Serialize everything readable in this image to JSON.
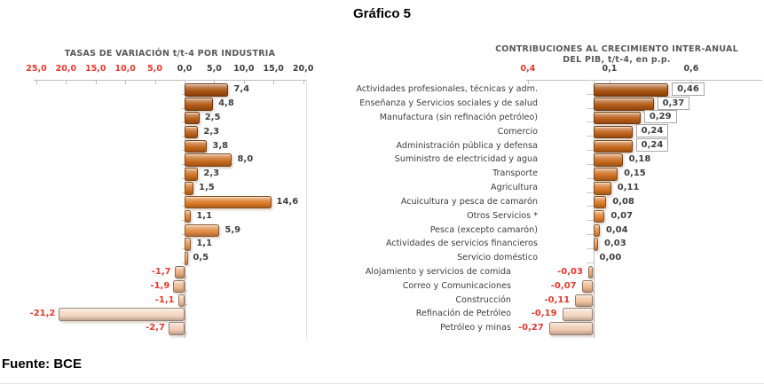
{
  "page": {
    "title": "Gráfico 5",
    "source": "Fuente: BCE"
  },
  "left_panel": {
    "header": "TASAS DE VARIACIÓN t/t-4 POR INDUSTRIA"
  },
  "right_panel": {
    "header_line1": "CONTRIBUCIONES AL CRECIMIENTO INTER-ANUAL",
    "header_line2": "DEL PIB, t/t-4, en p.p."
  },
  "chart_data": {
    "type": "bar",
    "orientation": "horizontal",
    "title": "Gráfico 5",
    "categories": [
      "Actividades profesionales, técnicas y adm.",
      "Enseñanza y Servicios sociales y de salud",
      "Manufactura (sin refinación petróleo)",
      "Comercio",
      "Administración pública y defensa",
      "Suministro de electricidad y agua",
      "Transporte",
      "Agricultura",
      "Acuicultura y pesca de camarón",
      "Otros Servicios *",
      "Pesca (excepto camarón)",
      "Actividades de servicios financieros",
      "Servicio doméstico",
      "Alojamiento y servicios de comida",
      "Correo y Comunicaciones",
      "Construcción",
      "Refinación de Petróleo",
      "Petróleo y minas"
    ],
    "series": [
      {
        "name": "TASAS DE VARIACIÓN t/t-4 POR INDUSTRIA",
        "values": [
          7.4,
          4.8,
          2.5,
          2.3,
          3.8,
          8.0,
          2.3,
          1.5,
          14.6,
          1.1,
          5.9,
          1.1,
          0.5,
          -1.7,
          -1.9,
          -1.1,
          -21.2,
          -2.7
        ],
        "value_labels": [
          "7,4",
          "4,8",
          "2,5",
          "2,3",
          "3,8",
          "8,0",
          "2,3",
          "1,5",
          "14,6",
          "1,1",
          "5,9",
          "1,1",
          "0,5",
          "-1,7",
          "-1,9",
          "-1,1",
          "-21,2",
          "-2,7"
        ],
        "xlim": [
          -25,
          20
        ],
        "tick_values": [
          -25,
          -20,
          -15,
          -10,
          -5,
          0,
          5,
          10,
          15,
          20
        ],
        "tick_labels": [
          "25,0",
          "20,0",
          "15,0",
          "10,0",
          "5,0",
          "0,0",
          "5,0",
          "10,0",
          "15,0",
          "20,0"
        ],
        "boxed_label_rows": []
      },
      {
        "name": "CONTRIBUCIONES AL CRECIMIENTO INTER-ANUAL DEL PIB, t/t-4, en p.p.",
        "values": [
          0.46,
          0.37,
          0.29,
          0.24,
          0.24,
          0.18,
          0.15,
          0.11,
          0.08,
          0.07,
          0.04,
          0.03,
          0.0,
          -0.03,
          -0.07,
          -0.11,
          -0.19,
          -0.27
        ],
        "value_labels": [
          "0,46",
          "0,37",
          "0,29",
          "0,24",
          "0,24",
          "0,18",
          "0,15",
          "0,11",
          "0,08",
          "0,07",
          "0,04",
          "0,03",
          "0,00",
          "-0,03",
          "-0,07",
          "-0,11",
          "-0,19",
          "-0,27"
        ],
        "xlim": [
          -0.4,
          0.65
        ],
        "tick_values": [
          -0.4,
          0.1,
          0.6
        ],
        "tick_labels": [
          "0,4",
          "0,1",
          "0,6"
        ],
        "boxed_label_rows": [
          0,
          1,
          2,
          3,
          4
        ]
      }
    ],
    "legend": null,
    "grid": false
  },
  "colors": {
    "bar_palette": [
      "#a9520f",
      "#b25814",
      "#b85d17",
      "#be611a",
      "#c4661c",
      "#c96b1e",
      "#ce7021",
      "#d47523",
      "#da7a26",
      "#dd8233",
      "#e08b42",
      "#e29450",
      "#e5a05e",
      "#e8ab79",
      "#ebb78d",
      "#eec29e",
      "#f3d5bf",
      "#efc9b1"
    ],
    "negative_text": "#e8382d",
    "value_text": "#3f3f3f",
    "axis_line": "#bfbfbf",
    "header_text": "#595959",
    "label_box_border": "#a6a6a6"
  }
}
